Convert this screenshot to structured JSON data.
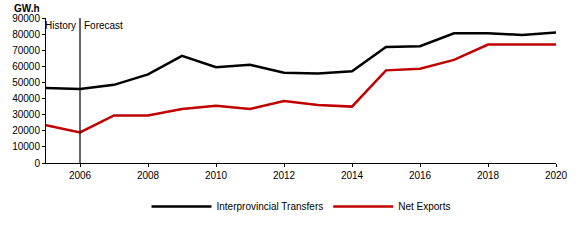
{
  "chart_data": {
    "type": "line",
    "ylabel": "GW.h",
    "x": [
      2005,
      2006,
      2007,
      2008,
      2009,
      2010,
      2011,
      2012,
      2013,
      2014,
      2015,
      2016,
      2017,
      2018,
      2019,
      2020
    ],
    "series": [
      {
        "name": "Interprovincial Transfers",
        "color": "#000000",
        "values": [
          46500,
          46000,
          48500,
          55000,
          66500,
          59500,
          61000,
          56000,
          55500,
          57000,
          72000,
          72500,
          80500,
          80500,
          79500,
          81000
        ]
      },
      {
        "name": "Net Exports",
        "color": "#c00000",
        "values": [
          23500,
          19000,
          29500,
          29500,
          33500,
          35500,
          33500,
          38500,
          36000,
          35000,
          57500,
          58500,
          64000,
          73500,
          73500,
          73500
        ]
      }
    ],
    "xlim": [
      2005,
      2020
    ],
    "xticks": [
      2006,
      2008,
      2010,
      2012,
      2014,
      2016,
      2018,
      2020
    ],
    "ylim": [
      0,
      90000
    ],
    "yticks": [
      0,
      10000,
      20000,
      30000,
      40000,
      50000,
      60000,
      70000,
      80000,
      90000
    ],
    "grid": false,
    "legend": "bottom",
    "vline": 2006,
    "annotations": [
      {
        "text": "History",
        "x": 2006,
        "align": "right"
      },
      {
        "text": "Forecast",
        "x": 2006,
        "align": "left"
      }
    ]
  }
}
